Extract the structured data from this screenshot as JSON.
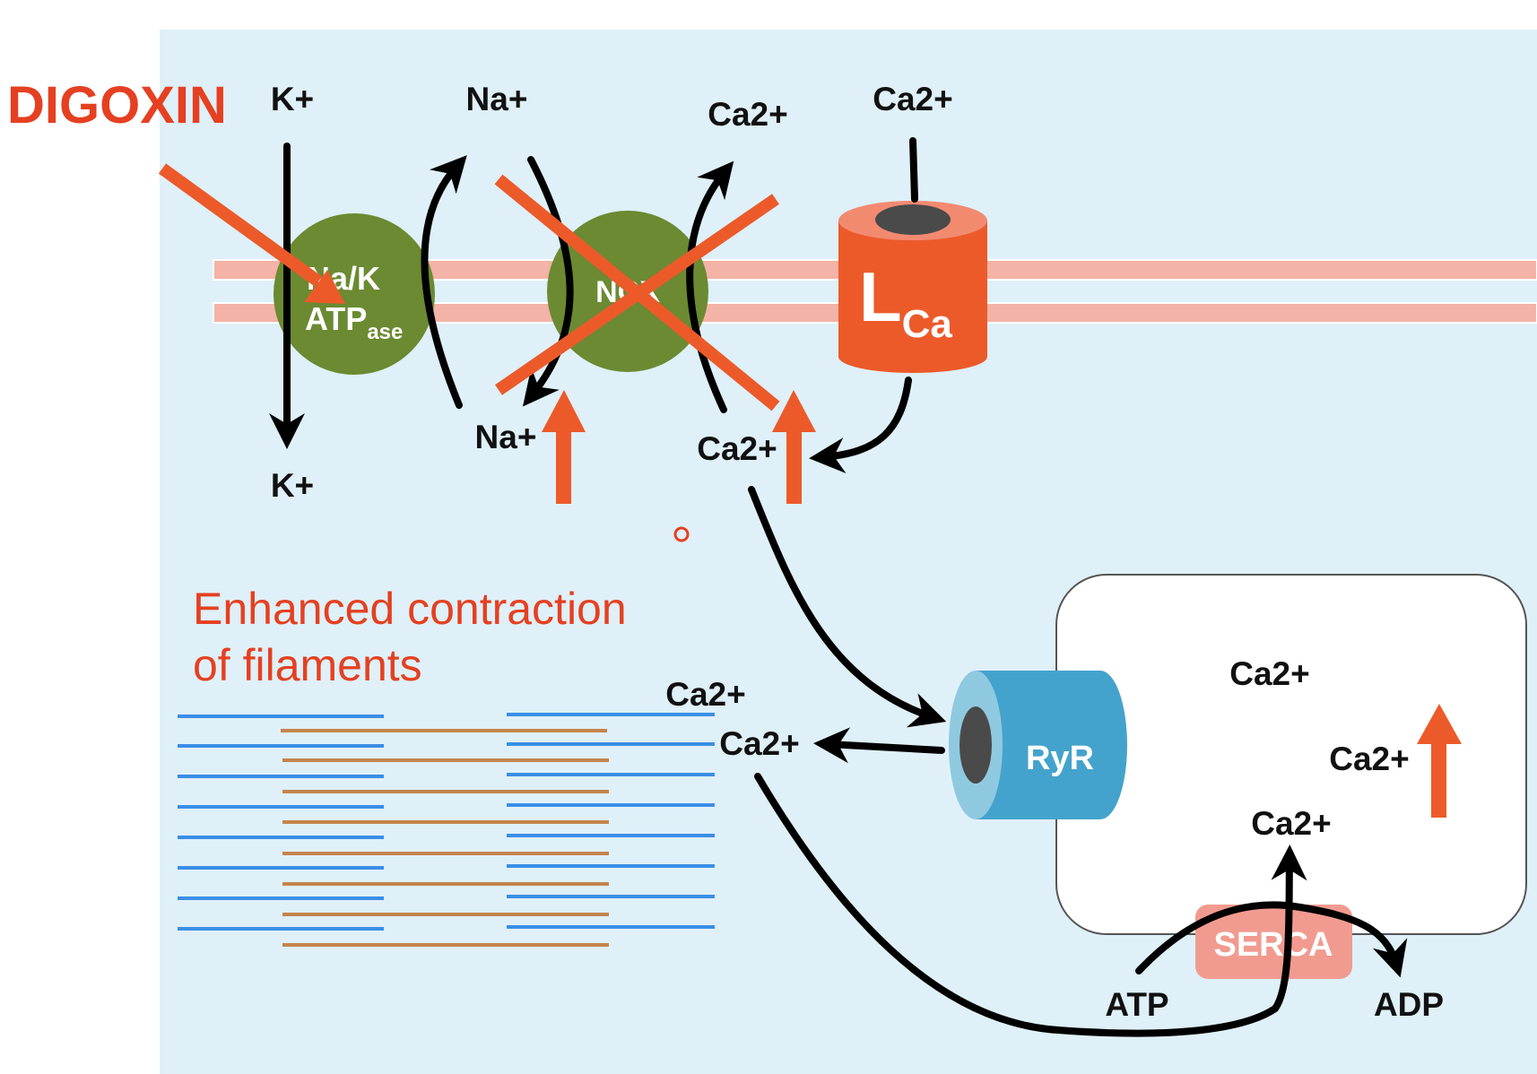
{
  "title": "DIGOXIN",
  "caption": {
    "line1": "Enhanced contraction",
    "line2": "of filaments"
  },
  "ions": {
    "k_out": "K+",
    "k_in": "K+",
    "na_out": "Na+",
    "na_in": "Na+",
    "ca_ncx_out": "Ca2+",
    "ca_lca_out": "Ca2+",
    "ca_in": "Ca2+",
    "ca_cyto_1": "Ca2+",
    "ca_cyto_2": "Ca2+",
    "ca_sr_1": "Ca2+",
    "ca_sr_2": "Ca2+",
    "ca_sr_3": "Ca2+"
  },
  "proteins": {
    "nak_line1": "Na/K",
    "nak_line2": "ATP",
    "nak_sub": "ase",
    "ncx": "NCX",
    "lca_main": "L",
    "lca_sub": "Ca",
    "ryr": "RyR",
    "serca": "SERCA"
  },
  "energy": {
    "atp": "ATP",
    "adp": "ADP"
  },
  "colors": {
    "background": "#dff0f8",
    "accent": "#ec5a2a",
    "digoxin": "#e54021",
    "pump_green": "#6b8a32",
    "membrane": "#f3b3a6",
    "ryr_blue": "#44a3cc",
    "serca_pink": "#f19b90",
    "actin": "#3a8ee6",
    "myosin": "#c4844e"
  }
}
